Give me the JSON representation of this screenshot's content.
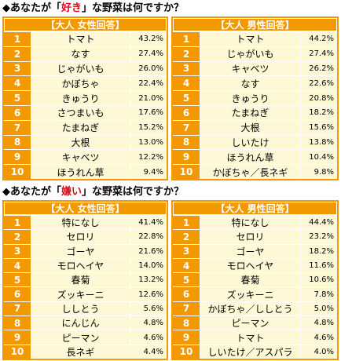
{
  "colors": {
    "accent": "#f39800",
    "cell": "#fff8d6",
    "highlight": "#e60012"
  },
  "sections": [
    {
      "title_prefix": "◆あなたが「",
      "title_highlight": "好き",
      "title_suffix": "」な野菜は何ですか？",
      "tables": [
        {
          "header": "【大人 女性回答】",
          "rows": [
            {
              "rank": "1",
              "name": "トマト",
              "percent": "43.2%"
            },
            {
              "rank": "2",
              "name": "なす",
              "percent": "27.4%"
            },
            {
              "rank": "3",
              "name": "じゃがいも",
              "percent": "26.0%"
            },
            {
              "rank": "4",
              "name": "かぼちゃ",
              "percent": "22.4%"
            },
            {
              "rank": "5",
              "name": "きゅうり",
              "percent": "21.0%"
            },
            {
              "rank": "6",
              "name": "さつまいも",
              "percent": "17.6%"
            },
            {
              "rank": "7",
              "name": "たまねぎ",
              "percent": "15.2%"
            },
            {
              "rank": "8",
              "name": "大根",
              "percent": "13.0%"
            },
            {
              "rank": "9",
              "name": "キャベツ",
              "percent": "12.2%"
            },
            {
              "rank": "10",
              "name": "ほうれん草",
              "percent": "9.4%"
            }
          ]
        },
        {
          "header": "【大人 男性回答】",
          "rows": [
            {
              "rank": "1",
              "name": "トマト",
              "percent": "44.2%"
            },
            {
              "rank": "2",
              "name": "じゃがいも",
              "percent": "27.4%"
            },
            {
              "rank": "3",
              "name": "キャベツ",
              "percent": "26.2%"
            },
            {
              "rank": "4",
              "name": "なす",
              "percent": "22.6%"
            },
            {
              "rank": "5",
              "name": "きゅうり",
              "percent": "20.8%"
            },
            {
              "rank": "6",
              "name": "たまねぎ",
              "percent": "18.2%"
            },
            {
              "rank": "7",
              "name": "大根",
              "percent": "15.6%"
            },
            {
              "rank": "8",
              "name": "しいたけ",
              "percent": "13.8%"
            },
            {
              "rank": "9",
              "name": "ほうれん草",
              "percent": "10.4%"
            },
            {
              "rank": "10",
              "name": "かぼちゃ／長ネギ",
              "percent": "9.8%"
            }
          ]
        }
      ]
    },
    {
      "title_prefix": "◆あなたが「",
      "title_highlight": "嫌い",
      "title_suffix": "」な野菜は何ですか？",
      "tables": [
        {
          "header": "【大人 女性回答】",
          "rows": [
            {
              "rank": "1",
              "name": "特になし",
              "percent": "41.4%"
            },
            {
              "rank": "2",
              "name": "セロリ",
              "percent": "22.8%"
            },
            {
              "rank": "3",
              "name": "ゴーヤ",
              "percent": "21.6%"
            },
            {
              "rank": "4",
              "name": "モロヘイヤ",
              "percent": "14.0%"
            },
            {
              "rank": "5",
              "name": "春菊",
              "percent": "13.2%"
            },
            {
              "rank": "6",
              "name": "ズッキーニ",
              "percent": "12.6%"
            },
            {
              "rank": "7",
              "name": "ししとう",
              "percent": "5.6%"
            },
            {
              "rank": "8",
              "name": "にんじん",
              "percent": "4.8%"
            },
            {
              "rank": "9",
              "name": "ピーマン",
              "percent": "4.6%"
            },
            {
              "rank": "10",
              "name": "長ネギ",
              "percent": "4.4%"
            }
          ]
        },
        {
          "header": "【大人 男性回答】",
          "rows": [
            {
              "rank": "1",
              "name": "特になし",
              "percent": "44.4%"
            },
            {
              "rank": "2",
              "name": "セロリ",
              "percent": "23.2%"
            },
            {
              "rank": "3",
              "name": "ゴーヤ",
              "percent": "18.2%"
            },
            {
              "rank": "4",
              "name": "モロヘイヤ",
              "percent": "11.6%"
            },
            {
              "rank": "5",
              "name": "春菊",
              "percent": "10.6%"
            },
            {
              "rank": "6",
              "name": "ズッキーニ",
              "percent": "7.8%"
            },
            {
              "rank": "7",
              "name": "かぼちゃ／ししとう",
              "percent": "5.0%"
            },
            {
              "rank": "8",
              "name": "ピーマン",
              "percent": "4.8%"
            },
            {
              "rank": "9",
              "name": "トマト",
              "percent": "4.6%"
            },
            {
              "rank": "10",
              "name": "しいたけ／アスパラ",
              "percent": "4.0%"
            }
          ]
        }
      ]
    }
  ]
}
